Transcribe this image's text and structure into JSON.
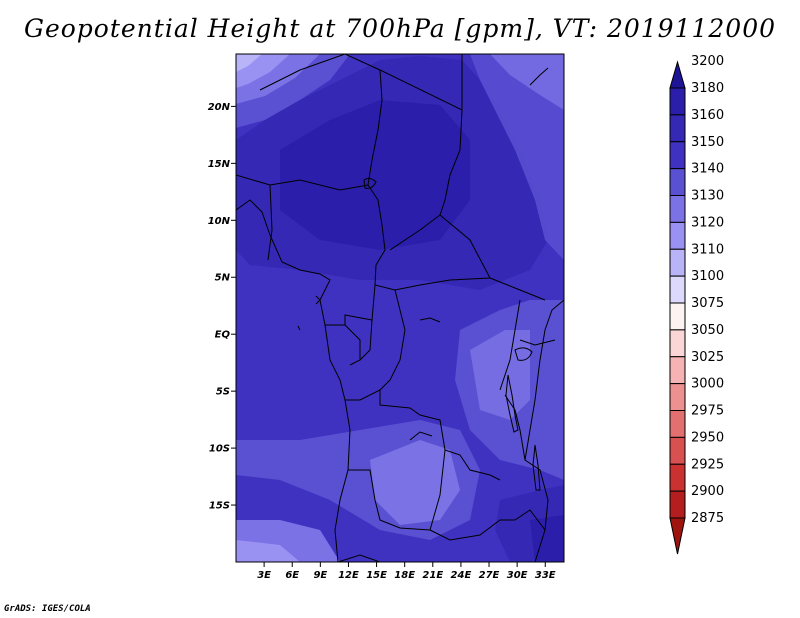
{
  "title": "Geopotential Height at 700hPa [gpm], VT: 2019112000",
  "credit": "GrADS: IGES/COLA",
  "map": {
    "lat_ticks": [
      {
        "lat": 20,
        "label": "20N"
      },
      {
        "lat": 15,
        "label": "15N"
      },
      {
        "lat": 10,
        "label": "10N"
      },
      {
        "lat": 5,
        "label": "5N"
      },
      {
        "lat": 0,
        "label": "EQ"
      },
      {
        "lat": -5,
        "label": "5S"
      },
      {
        "lat": -10,
        "label": "10S"
      },
      {
        "lat": -15,
        "label": "15S"
      }
    ],
    "lon_ticks": [
      {
        "lon": 3,
        "label": "3E"
      },
      {
        "lon": 6,
        "label": "6E"
      },
      {
        "lon": 9,
        "label": "9E"
      },
      {
        "lon": 12,
        "label": "12E"
      },
      {
        "lon": 15,
        "label": "15E"
      },
      {
        "lon": 18,
        "label": "18E"
      },
      {
        "lon": 21,
        "label": "21E"
      },
      {
        "lon": 24,
        "label": "24E"
      },
      {
        "lon": 27,
        "label": "27E"
      },
      {
        "lon": 30,
        "label": "30E"
      },
      {
        "lon": 33,
        "label": "33E"
      }
    ],
    "lon_range": [
      0,
      35
    ],
    "lat_range": [
      -20,
      24.6
    ]
  },
  "colorbar": {
    "levels": [
      "3200",
      "3180",
      "3160",
      "3150",
      "3140",
      "3130",
      "3120",
      "3110",
      "3100",
      "3075",
      "3050",
      "3025",
      "3000",
      "2975",
      "2950",
      "2925",
      "2900",
      "2875"
    ],
    "colors": [
      "#1e1496",
      "#2a1eaa",
      "#3428b4",
      "#4032c0",
      "#5a50d2",
      "#7b72e6",
      "#9a92f2",
      "#b9b3f8",
      "#dcd9fc",
      "#fdf3f3",
      "#fbd6d6",
      "#f5b3b3",
      "#ec9090",
      "#e27070",
      "#d85050",
      "#ca3232",
      "#b41e1e",
      "#a0140f"
    ]
  },
  "colors": {
    "h3160": "#3428b4",
    "h3150": "#4032c0",
    "h3140": "#5a50d2",
    "h3130": "#7b72e6",
    "h3120": "#9a92f2",
    "h3110": "#b9b3f8"
  }
}
